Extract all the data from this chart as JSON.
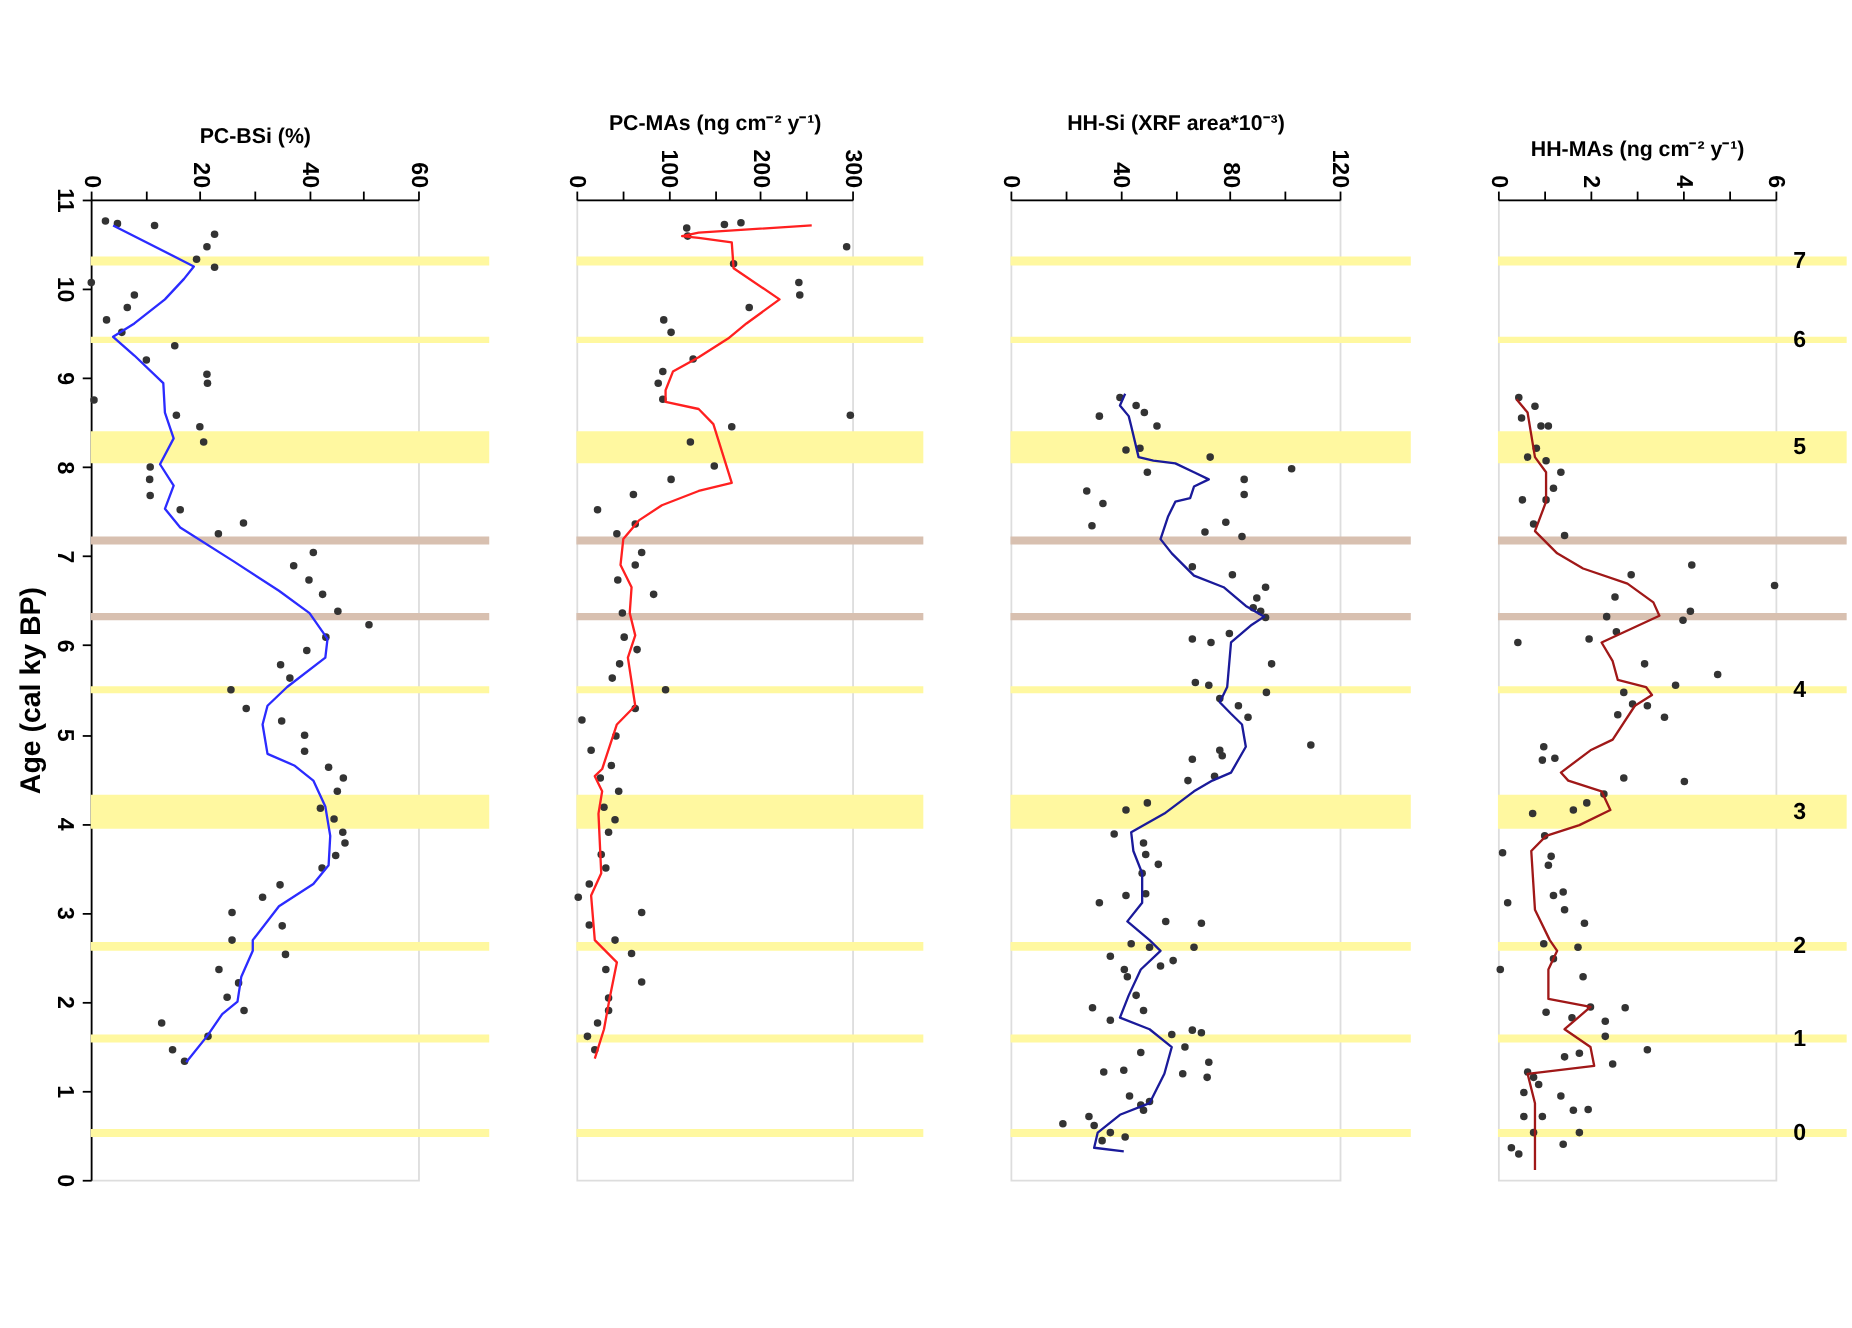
{
  "chart_data": [
    {
      "type": "scatter",
      "xlabel": "PC-BSi (%)",
      "ylabel": "Age (cal ky BP)",
      "xlim": [
        0,
        60
      ],
      "xticks": [
        0,
        {
          "value": 10,
          "label": null
        },
        20,
        {
          "value": 30,
          "label": null
        },
        40,
        {
          "value": 50,
          "label": null
        },
        60
      ],
      "ylim": [
        0,
        11
      ],
      "yticks": [
        0,
        1,
        2,
        3,
        4,
        5,
        6,
        7,
        8,
        9,
        10,
        11
      ],
      "series": [
        {
          "marker": "circle",
          "color": "#333333",
          "x": [
            2.7,
            4.9,
            11.7,
            22.7,
            21.3,
            19.4,
            22.7,
            0.1,
            8.0,
            6.7,
            2.9,
            5.7,
            15.4,
            10.2,
            21.3,
            21.4,
            0.6,
            15.7,
            20.0,
            20.7,
            10.9,
            10.8,
            10.9,
            16.4,
            23.4,
            28.0,
            40.8,
            37.2,
            40.0,
            42.5,
            45.3,
            51.0,
            43.1,
            39.6,
            34.8,
            36.5,
            25.7,
            28.5,
            35.0,
            39.2,
            39.2,
            43.6,
            46.3,
            45.2,
            42.1,
            44.6,
            46.2,
            46.6,
            44.9,
            42.4,
            34.7,
            31.5,
            25.9,
            35.1,
            25.9,
            35.7,
            23.5,
            27.1,
            25.0,
            28.1,
            13.0,
            21.5,
            15.0,
            17.2
          ],
          "values": [
            10.76,
            10.73,
            10.71,
            10.61,
            10.47,
            10.33,
            10.24,
            10.07,
            9.93,
            9.79,
            9.65,
            9.51,
            9.36,
            9.2,
            9.04,
            8.94,
            8.75,
            8.58,
            8.45,
            8.28,
            8.0,
            7.86,
            7.68,
            7.52,
            7.25,
            7.37,
            7.04,
            6.89,
            6.73,
            6.57,
            6.38,
            6.23,
            6.09,
            5.94,
            5.78,
            5.63,
            5.5,
            5.29,
            5.15,
            4.99,
            4.81,
            4.63,
            4.51,
            4.36,
            4.17,
            4.05,
            3.9,
            3.78,
            3.64,
            3.5,
            3.31,
            3.17,
            3.0,
            2.85,
            2.69,
            2.53,
            2.36,
            2.21,
            2.05,
            1.9,
            1.76,
            1.61,
            1.46,
            1.33
          ]
        },
        {
          "type": "line",
          "marker": "none",
          "line_style": "solid",
          "color": "#2b2bff",
          "x": [
            4.1,
            18.9,
            17.1,
            13.6,
            8.0,
            4.1,
            8.0,
            13.3,
            13.6,
            15.2,
            12.7,
            15.2,
            13.6,
            16.4,
            26.2,
            34.5,
            40.1,
            43.4,
            43.0,
            36.0,
            32.4,
            31.5,
            32.4,
            37.3,
            40.8,
            43.0,
            43.9,
            43.6,
            40.8,
            34.5,
            29.7,
            29.7,
            27.6,
            26.9,
            24.1,
            21.3,
            17.5
          ],
          "values": [
            10.71,
            10.25,
            10.11,
            9.88,
            9.61,
            9.46,
            9.25,
            8.94,
            8.61,
            8.32,
            8.03,
            7.79,
            7.53,
            7.32,
            6.94,
            6.61,
            6.36,
            6.07,
            5.86,
            5.53,
            5.32,
            5.11,
            4.78,
            4.65,
            4.48,
            4.19,
            3.86,
            3.53,
            3.32,
            3.07,
            2.69,
            2.57,
            2.28,
            2.0,
            1.86,
            1.61,
            1.32
          ]
        }
      ],
      "bands": [
        {
          "axis": "y",
          "from": 10.26,
          "to": 10.36,
          "color": "#fff8a0"
        },
        {
          "axis": "y",
          "from": 9.39,
          "to": 9.46,
          "color": "#fff8a0"
        },
        {
          "axis": "y",
          "from": 8.04,
          "to": 8.4,
          "color": "#fff8a0"
        },
        {
          "axis": "y",
          "from": 7.13,
          "to": 7.22,
          "color": "#d8c0b0"
        },
        {
          "axis": "y",
          "from": 6.28,
          "to": 6.36,
          "color": "#d8c0b0"
        },
        {
          "axis": "y",
          "from": 5.46,
          "to": 5.54,
          "color": "#fff8a0"
        },
        {
          "axis": "y",
          "from": 3.94,
          "to": 4.32,
          "color": "#fff8a0"
        },
        {
          "axis": "y",
          "from": 2.57,
          "to": 2.67,
          "color": "#fff8a0"
        },
        {
          "axis": "y",
          "from": 1.54,
          "to": 1.63,
          "color": "#fff8a0"
        },
        {
          "axis": "y",
          "from": 0.48,
          "to": 0.57,
          "color": "#fff8a0"
        }
      ]
    },
    {
      "type": "scatter",
      "xlabel": "PC-MAs (ng cm⁻² y⁻¹)",
      "xlim": [
        0,
        300
      ],
      "xticks": [
        0,
        {
          "value": 50,
          "label": null
        },
        100,
        {
          "value": 150,
          "label": null
        },
        200,
        {
          "value": 250,
          "label": null
        },
        300
      ],
      "ylim": [
        0,
        11
      ],
      "tick_labels": "x",
      "series": [
        {
          "marker": "circle",
          "color": "#333333",
          "x": [
            120,
            121,
            161,
            179,
            294,
            171,
            242,
            243,
            188,
            95,
            103,
            127,
            94,
            89,
            94,
            298,
            169,
            124,
            150,
            103,
            62,
            23,
            64,
            44,
            71,
            64,
            45,
            84,
            50,
            52,
            66,
            47,
            39,
            97,
            64,
            6,
            43,
            16,
            38,
            26,
            46,
            30,
            42,
            35,
            27,
            32,
            14,
            2,
            71,
            14,
            42,
            60,
            71,
            32,
            35,
            35,
            23,
            12,
            20
          ],
          "values": [
            10.68,
            10.59,
            10.72,
            10.74,
            10.47,
            10.28,
            10.07,
            9.93,
            9.79,
            9.65,
            9.51,
            9.21,
            9.07,
            8.94,
            8.76,
            8.58,
            8.45,
            8.28,
            8.01,
            7.86,
            7.69,
            7.52,
            7.36,
            7.25,
            7.04,
            6.9,
            6.73,
            6.57,
            6.36,
            6.09,
            5.95,
            5.79,
            5.63,
            5.5,
            5.29,
            5.16,
            4.98,
            4.82,
            4.65,
            4.51,
            4.36,
            4.18,
            4.04,
            3.9,
            3.65,
            3.5,
            3.32,
            3.17,
            3.0,
            2.86,
            2.69,
            2.54,
            2.22,
            2.36,
            2.04,
            1.9,
            1.76,
            1.61,
            1.46
          ]
        },
        {
          "type": "line",
          "marker": "none",
          "line_style": "solid",
          "color": "#ff2020",
          "x": [
            256,
            133,
            115,
            133,
            169,
            171,
            221,
            185,
            165,
            133,
            105,
            97,
            97,
            133,
            149,
            169,
            133,
            93,
            68,
            51,
            48,
            60,
            58,
            64,
            56,
            64,
            44,
            28,
            20,
            28,
            24,
            27,
            16,
            20,
            44,
            36,
            30,
            20
          ],
          "values": [
            10.71,
            10.63,
            10.59,
            10.57,
            10.52,
            10.23,
            9.88,
            9.61,
            9.44,
            9.23,
            9.07,
            8.86,
            8.73,
            8.65,
            8.48,
            7.82,
            7.73,
            7.57,
            7.4,
            7.19,
            6.9,
            6.65,
            6.36,
            6.11,
            5.86,
            5.32,
            5.11,
            4.61,
            4.53,
            4.36,
            4.11,
            3.44,
            3.19,
            2.69,
            2.44,
            2.03,
            1.69,
            1.36
          ]
        }
      ],
      "bands": [
        {
          "axis": "y",
          "from": 10.26,
          "to": 10.36,
          "color": "#fff8a0"
        },
        {
          "axis": "y",
          "from": 9.39,
          "to": 9.46,
          "color": "#fff8a0"
        },
        {
          "axis": "y",
          "from": 8.04,
          "to": 8.4,
          "color": "#fff8a0"
        },
        {
          "axis": "y",
          "from": 7.13,
          "to": 7.22,
          "color": "#d8c0b0"
        },
        {
          "axis": "y",
          "from": 6.28,
          "to": 6.36,
          "color": "#d8c0b0"
        },
        {
          "axis": "y",
          "from": 5.46,
          "to": 5.54,
          "color": "#fff8a0"
        },
        {
          "axis": "y",
          "from": 3.94,
          "to": 4.32,
          "color": "#fff8a0"
        },
        {
          "axis": "y",
          "from": 2.57,
          "to": 2.67,
          "color": "#fff8a0"
        },
        {
          "axis": "y",
          "from": 1.54,
          "to": 1.63,
          "color": "#fff8a0"
        },
        {
          "axis": "y",
          "from": 0.48,
          "to": 0.57,
          "color": "#fff8a0"
        }
      ]
    },
    {
      "type": "scatter",
      "xlabel": "HH-Si (XRF area*10⁻³)",
      "xlim": [
        0,
        120
      ],
      "xticks": [
        0,
        {
          "value": 20,
          "label": null
        },
        40,
        {
          "value": 60,
          "label": null
        },
        80,
        {
          "value": 100,
          "label": null
        },
        120
      ],
      "ylim": [
        0,
        11
      ],
      "tick_labels": "x",
      "series": [
        {
          "marker": "circle",
          "color": "#333333",
          "x": [
            39.9,
            45.8,
            32.4,
            48.8,
            53.4,
            42.1,
            47.2,
            72.8,
            102.5,
            49.9,
            85.2,
            27.8,
            85.2,
            33.7,
            29.7,
            70.9,
            78.5,
            84.4,
            66.3,
            80.9,
            93.0,
            89.8,
            88.5,
            91.2,
            93.0,
            79.8,
            66.3,
            73.1,
            95.2,
            67.4,
            72.3,
            93.3,
            76.3,
            83.1,
            86.6,
            109.5,
            76.3,
            77.2,
            66.3,
            64.7,
            74.4,
            49.9,
            42.1,
            37.8,
            48.5,
            49.3,
            53.9,
            48.0,
            32.4,
            42.1,
            49.3,
            56.6,
            69.6,
            44.0,
            50.7,
            66.9,
            36.4,
            54.7,
            59.3,
            41.5,
            42.6,
            45.8,
            48.5,
            29.9,
            36.4,
            58.8,
            66.3,
            69.6,
            63.6,
            47.5,
            72.3,
            34.0,
            41.3,
            62.8,
            71.7,
            43.4,
            50.7,
            47.5,
            48.5,
            19.1,
            28.6,
            30.5,
            36.4,
            41.8,
            33.4
          ],
          "values": [
            8.78,
            8.69,
            8.57,
            8.61,
            8.46,
            8.19,
            8.21,
            8.11,
            7.98,
            7.94,
            7.86,
            7.73,
            7.69,
            7.59,
            7.34,
            7.27,
            7.38,
            7.22,
            6.88,
            6.79,
            6.65,
            6.53,
            6.42,
            6.38,
            6.31,
            6.13,
            6.07,
            6.03,
            5.79,
            5.58,
            5.55,
            5.47,
            5.4,
            5.32,
            5.19,
            4.88,
            4.82,
            4.76,
            4.72,
            4.48,
            4.53,
            4.23,
            4.15,
            3.88,
            3.78,
            3.65,
            3.54,
            3.44,
            3.11,
            3.19,
            3.21,
            2.9,
            2.88,
            2.65,
            2.61,
            2.61,
            2.51,
            2.4,
            2.46,
            2.36,
            2.28,
            2.07,
            1.9,
            1.93,
            1.79,
            1.63,
            1.68,
            1.65,
            1.49,
            1.43,
            1.32,
            1.21,
            1.23,
            1.19,
            1.15,
            0.94,
            0.88,
            0.84,
            0.78,
            0.63,
            0.71,
            0.61,
            0.53,
            0.48,
            0.44
          ]
        },
        {
          "type": "line",
          "marker": "none",
          "line_style": "solid",
          "color": "#1a1a9a",
          "x": [
            41.8,
            39.9,
            43.1,
            44.0,
            46.7,
            52.1,
            60.1,
            66.9,
            72.3,
            66.9,
            65.5,
            60.1,
            57.4,
            54.7,
            58.8,
            66.9,
            77.7,
            85.8,
            92.5,
            88.0,
            80.4,
            79.0,
            76.3,
            80.4,
            84.4,
            85.8,
            80.4,
            73.6,
            66.9,
            56.1,
            44.0,
            44.8,
            48.0,
            48.0,
            42.6,
            50.7,
            54.7,
            47.5,
            43.1,
            39.9,
            50.7,
            58.8,
            56.1,
            50.7,
            39.9,
            31.8,
            30.5,
            41.3
          ],
          "values": [
            8.82,
            8.69,
            8.57,
            8.46,
            8.11,
            8.07,
            8.04,
            7.94,
            7.86,
            7.78,
            7.65,
            7.61,
            7.44,
            7.19,
            7.03,
            6.78,
            6.65,
            6.44,
            6.32,
            6.23,
            6.03,
            5.53,
            5.36,
            5.23,
            5.11,
            4.86,
            4.57,
            4.48,
            4.36,
            4.11,
            3.9,
            3.69,
            3.44,
            3.11,
            2.9,
            2.69,
            2.57,
            2.36,
            2.07,
            1.82,
            1.69,
            1.49,
            1.19,
            0.86,
            0.73,
            0.53,
            0.36,
            0.32
          ]
        }
      ],
      "bands": [
        {
          "axis": "y",
          "from": 10.26,
          "to": 10.36,
          "color": "#fff8a0"
        },
        {
          "axis": "y",
          "from": 9.39,
          "to": 9.46,
          "color": "#fff8a0"
        },
        {
          "axis": "y",
          "from": 8.04,
          "to": 8.4,
          "color": "#fff8a0"
        },
        {
          "axis": "y",
          "from": 7.13,
          "to": 7.22,
          "color": "#d8c0b0"
        },
        {
          "axis": "y",
          "from": 6.28,
          "to": 6.36,
          "color": "#d8c0b0"
        },
        {
          "axis": "y",
          "from": 5.46,
          "to": 5.54,
          "color": "#fff8a0"
        },
        {
          "axis": "y",
          "from": 3.94,
          "to": 4.32,
          "color": "#fff8a0"
        },
        {
          "axis": "y",
          "from": 2.57,
          "to": 2.67,
          "color": "#fff8a0"
        },
        {
          "axis": "y",
          "from": 1.54,
          "to": 1.63,
          "color": "#fff8a0"
        },
        {
          "axis": "y",
          "from": 0.48,
          "to": 0.57,
          "color": "#fff8a0"
        }
      ]
    },
    {
      "type": "scatter",
      "xlabel": "HH-MAs (ng cm⁻² y⁻¹)",
      "xlim": [
        0,
        6
      ],
      "xticks": [
        0,
        {
          "value": 1,
          "label": null
        },
        2,
        {
          "value": 3,
          "label": null
        },
        4,
        {
          "value": 5,
          "label": null
        },
        6
      ],
      "ylim": [
        0,
        11
      ],
      "tick_labels": "x",
      "series": [
        {
          "marker": "circle",
          "color": "#333333",
          "x": [
            0.45,
            0.8,
            0.51,
            0.93,
            1.09,
            0.83,
            0.64,
            1.04,
            1.36,
            1.2,
            0.53,
            1.04,
            0.77,
            1.44,
            2.88,
            4.19,
            5.98,
            2.53,
            2.35,
            4.16,
            4.0,
            2.56,
            1.97,
            0.43,
            3.17,
            4.75,
            3.84,
            2.72,
            2.91,
            2.59,
            3.23,
            3.6,
            0.99,
            0.96,
            1.23,
            2.72,
            4.03,
            2.29,
            1.92,
            1.63,
            0.75,
            1.01,
            0.1,
            1.15,
            1.09,
            1.2,
            1.41,
            0.21,
            1.44,
            1.87,
            0.99,
            1.73,
            1.2,
            0.05,
            1.84,
            2.75,
            2.0,
            1.04,
            1.6,
            2.32,
            2.32,
            2.48,
            3.23,
            1.76,
            1.44,
            0.64,
            0.77,
            0.88,
            0.56,
            1.36,
            1.63,
            1.95,
            0.56,
            0.96,
            1.76,
            0.77,
            0.29,
            0.45,
            1.41
          ],
          "values": [
            8.78,
            8.68,
            8.55,
            8.46,
            8.46,
            8.21,
            8.11,
            8.07,
            7.94,
            7.76,
            7.63,
            7.63,
            7.36,
            7.23,
            6.79,
            6.9,
            6.67,
            6.54,
            6.32,
            6.38,
            6.28,
            6.15,
            6.07,
            6.03,
            5.79,
            5.67,
            5.55,
            5.47,
            5.34,
            5.22,
            5.32,
            5.19,
            4.86,
            4.71,
            4.73,
            4.51,
            4.47,
            4.33,
            4.23,
            4.15,
            4.11,
            3.86,
            3.67,
            3.63,
            3.53,
            3.19,
            3.23,
            3.11,
            3.03,
            2.88,
            2.65,
            2.61,
            2.48,
            2.36,
            2.28,
            1.93,
            1.94,
            1.88,
            1.82,
            1.78,
            1.61,
            1.3,
            1.46,
            1.42,
            1.38,
            1.21,
            1.15,
            1.07,
            0.98,
            0.94,
            0.78,
            0.79,
            0.71,
            0.71,
            0.53,
            0.53,
            0.36,
            0.29,
            0.4
          ]
        },
        {
          "type": "line",
          "marker": "none",
          "line_style": "solid",
          "color": "#a01818",
          "x": [
            0.4,
            0.64,
            0.72,
            0.8,
            1.04,
            1.04,
            0.8,
            1.28,
            1.84,
            2.8,
            3.36,
            3.49,
            2.24,
            2.48,
            2.59,
            3.2,
            3.33,
            2.96,
            2.48,
            2.0,
            1.36,
            1.52,
            2.24,
            2.43,
            1.76,
            1.04,
            0.72,
            0.8,
            1.12,
            1.28,
            1.09,
            1.09,
            2.0,
            1.44,
            2.0,
            2.08,
            0.64,
            0.8,
            0.8,
            0.8
          ],
          "values": [
            8.76,
            8.61,
            8.36,
            8.11,
            7.94,
            7.61,
            7.28,
            7.03,
            6.86,
            6.69,
            6.48,
            6.33,
            6.03,
            5.82,
            5.61,
            5.53,
            5.44,
            5.32,
            4.94,
            4.82,
            4.57,
            4.48,
            4.36,
            4.15,
            3.98,
            3.86,
            3.69,
            3.03,
            2.69,
            2.57,
            2.36,
            2.03,
            1.94,
            1.69,
            1.49,
            1.28,
            1.19,
            0.86,
            0.53,
            0.11
          ]
        }
      ],
      "bands": [
        {
          "axis": "y",
          "from": 10.26,
          "to": 10.36,
          "color": "#fff8a0",
          "label": "7"
        },
        {
          "axis": "y",
          "from": 9.39,
          "to": 9.46,
          "color": "#fff8a0",
          "label": "6"
        },
        {
          "axis": "y",
          "from": 8.04,
          "to": 8.4,
          "color": "#fff8a0",
          "label": "5"
        },
        {
          "axis": "y",
          "from": 7.13,
          "to": 7.22,
          "color": "#d8c0b0"
        },
        {
          "axis": "y",
          "from": 6.28,
          "to": 6.36,
          "color": "#d8c0b0"
        },
        {
          "axis": "y",
          "from": 5.46,
          "to": 5.54,
          "color": "#fff8a0",
          "label": "4"
        },
        {
          "axis": "y",
          "from": 3.94,
          "to": 4.32,
          "color": "#fff8a0",
          "label": "3"
        },
        {
          "axis": "y",
          "from": 2.57,
          "to": 2.67,
          "color": "#fff8a0",
          "label": "2"
        },
        {
          "axis": "y",
          "from": 1.54,
          "to": 1.63,
          "color": "#fff8a0",
          "label": "1"
        },
        {
          "axis": "y",
          "from": 0.48,
          "to": 0.57,
          "color": "#fff8a0",
          "label": "0"
        }
      ]
    }
  ]
}
